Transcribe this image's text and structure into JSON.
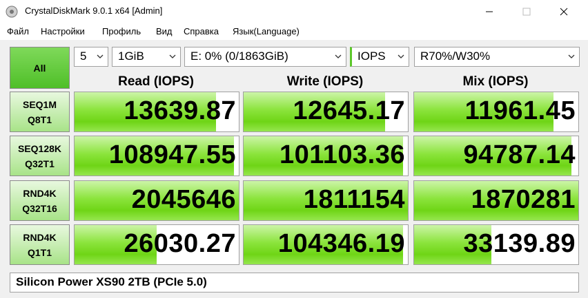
{
  "window": {
    "title": "CrystalDiskMark 9.0.1 x64 [Admin]"
  },
  "menu": [
    "Файл",
    "Настройки",
    "Профиль",
    "Вид",
    "Справка",
    "Язык(Language)"
  ],
  "controls": {
    "all": "All",
    "count": "5",
    "size": "1GiB",
    "drive": "E: 0% (0/1863GiB)",
    "unit": "IOPS",
    "mix": "R70%/W30%"
  },
  "headers": [
    "Read (IOPS)",
    "Write (IOPS)",
    "Mix (IOPS)"
  ],
  "rows": [
    {
      "label": [
        "SEQ1M",
        "Q8T1"
      ],
      "values": [
        "13639.87",
        "12645.17",
        "11961.45"
      ]
    },
    {
      "label": [
        "SEQ128K",
        "Q32T1"
      ],
      "values": [
        "108947.55",
        "101103.36",
        "94787.14"
      ]
    },
    {
      "label": [
        "RND4K",
        "Q32T16"
      ],
      "values": [
        "2045646",
        "1811154",
        "1870281"
      ]
    },
    {
      "label": [
        "RND4K",
        "Q1T1"
      ],
      "values": [
        "26030.27",
        "104346.19",
        "33139.89"
      ]
    }
  ],
  "comment": "Silicon Power XS90 2TB (PCIe 5.0)"
}
